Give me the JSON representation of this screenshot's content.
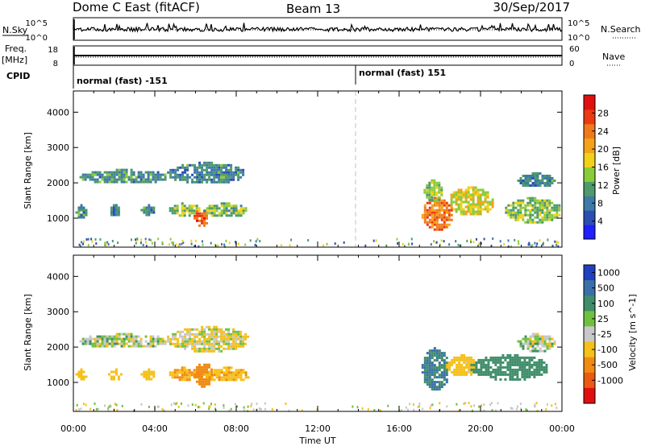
{
  "header": {
    "station": "Dome C East (fitACF)",
    "beam": "Beam 13",
    "date": "30/Sep/2017"
  },
  "strip_labels": {
    "nsky": "N.Sky",
    "freq": "Freq.",
    "freq_unit": "[MHz]",
    "cpid": "CPID",
    "nsearch": "N.Search",
    "nave": "Nave"
  },
  "strip_ticks": {
    "nsky_left_top": "10^5",
    "nsky_left_bottom": "10^0",
    "nsky_right_top": "10^5",
    "nsky_right_bottom": "10^0",
    "freq_left_top": "18",
    "freq_left_bottom": "8",
    "nave_right_top": "60",
    "nave_right_bottom": "0"
  },
  "cpid_segments": [
    {
      "text": "normal (fast) -151"
    },
    {
      "text": "normal (fast) 151"
    }
  ],
  "axes": {
    "xlabel": "Time UT",
    "ylabel": "Slant Range [km]",
    "xticks": [
      "00:00",
      "04:00",
      "08:00",
      "12:00",
      "16:00",
      "20:00",
      "00:00"
    ],
    "yticks": [
      "1000",
      "2000",
      "3000",
      "4000"
    ]
  },
  "power_bar": {
    "label": "Power [dB]",
    "ticks": [
      "4",
      "8",
      "12",
      "16",
      "20",
      "24",
      "28"
    ],
    "colors": [
      "#1f1fff",
      "#2a4fb0",
      "#3e7aa8",
      "#4e9a6a",
      "#8acb3a",
      "#f1d11a",
      "#f4a21a",
      "#f07a1a",
      "#ea3a12",
      "#e01010"
    ]
  },
  "velocity_bar": {
    "label": "Velocity [m s^-1]",
    "ticks": [
      "1000",
      "500",
      "100",
      "25",
      "-25",
      "-100",
      "-500",
      "-1000"
    ],
    "colors": [
      "#2040c0",
      "#3a70a8",
      "#3f8d6a",
      "#70c040",
      "#c8c8c8",
      "#f5c018",
      "#f08a12",
      "#ea5a12",
      "#e01010"
    ]
  },
  "chart_data": [
    {
      "type": "heatmap",
      "title": "Power",
      "xlabel": "Time UT",
      "ylabel": "Slant Range [km]",
      "xlim": [
        0,
        24
      ],
      "ylim": [
        180,
        4600
      ],
      "colorbar": {
        "label": "Power [dB]",
        "range": [
          0,
          32
        ]
      },
      "regions": [
        {
          "t": [
            0.3,
            4.6
          ],
          "r": [
            2000,
            2400
          ],
          "value": 10
        },
        {
          "t": [
            4.6,
            8.4
          ],
          "r": [
            2000,
            2600
          ],
          "value": 9
        },
        {
          "t": [
            0.1,
            0.6
          ],
          "r": [
            1000,
            1400
          ],
          "value": 10
        },
        {
          "t": [
            1.7,
            2.3
          ],
          "r": [
            1100,
            1400
          ],
          "value": 9
        },
        {
          "t": [
            3.3,
            4.0
          ],
          "r": [
            1100,
            1400
          ],
          "value": 10
        },
        {
          "t": [
            4.7,
            6.2
          ],
          "r": [
            1100,
            1450
          ],
          "value": 14
        },
        {
          "t": [
            5.9,
            6.6
          ],
          "r": [
            800,
            1300
          ],
          "value": 26
        },
        {
          "t": [
            6.4,
            8.5
          ],
          "r": [
            1050,
            1450
          ],
          "value": 13
        },
        {
          "t": [
            17.1,
            18.6
          ],
          "r": [
            700,
            1600
          ],
          "value": 24
        },
        {
          "t": [
            17.2,
            18.1
          ],
          "r": [
            1500,
            2100
          ],
          "value": 14
        },
        {
          "t": [
            18.4,
            20.6
          ],
          "r": [
            1100,
            1900
          ],
          "value": 17
        },
        {
          "t": [
            21.2,
            23.9
          ],
          "r": [
            900,
            1600
          ],
          "value": 14
        },
        {
          "t": [
            21.8,
            23.6
          ],
          "r": [
            1900,
            2300
          ],
          "value": 9
        }
      ]
    },
    {
      "type": "heatmap",
      "title": "Velocity",
      "xlabel": "Time UT",
      "ylabel": "Slant Range [km]",
      "xlim": [
        0,
        24
      ],
      "ylim": [
        180,
        4600
      ],
      "colorbar": {
        "label": "Velocity [m s^-1]",
        "ticks": [
          1000,
          500,
          100,
          25,
          -25,
          -100,
          -500,
          -1000
        ]
      },
      "regions": [
        {
          "t": [
            0.3,
            4.6
          ],
          "r": [
            2000,
            2400
          ],
          "value": 0
        },
        {
          "t": [
            4.6,
            8.6
          ],
          "r": [
            1900,
            2600
          ],
          "value": -50
        },
        {
          "t": [
            0.1,
            0.6
          ],
          "r": [
            1100,
            1400
          ],
          "value": -200
        },
        {
          "t": [
            1.7,
            2.3
          ],
          "r": [
            1100,
            1400
          ],
          "value": -200
        },
        {
          "t": [
            3.3,
            4.0
          ],
          "r": [
            1100,
            1400
          ],
          "value": -200
        },
        {
          "t": [
            4.7,
            6.2
          ],
          "r": [
            1100,
            1450
          ],
          "value": -300
        },
        {
          "t": [
            5.9,
            6.8
          ],
          "r": [
            900,
            1600
          ],
          "value": -500
        },
        {
          "t": [
            6.4,
            8.6
          ],
          "r": [
            1050,
            1450
          ],
          "value": -250
        },
        {
          "t": [
            17.1,
            18.4
          ],
          "r": [
            800,
            2000
          ],
          "value": 300
        },
        {
          "t": [
            18.3,
            19.8
          ],
          "r": [
            1200,
            1800
          ],
          "value": -150
        },
        {
          "t": [
            19.5,
            23.3
          ],
          "r": [
            1100,
            1800
          ],
          "value": 200
        },
        {
          "t": [
            21.8,
            23.6
          ],
          "r": [
            1900,
            2400
          ],
          "value": 0
        }
      ]
    }
  ]
}
